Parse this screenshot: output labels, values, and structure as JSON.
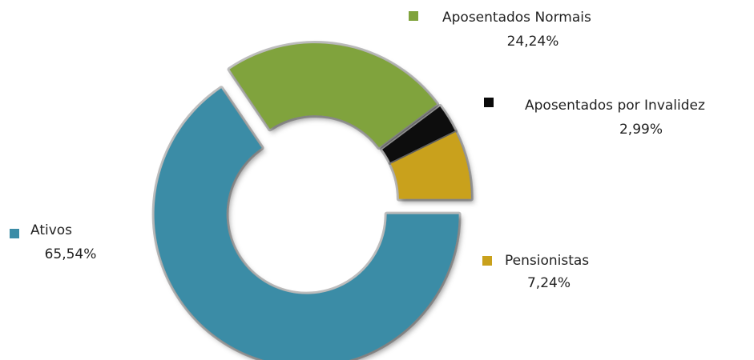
{
  "chart_data": {
    "type": "donut",
    "categories": [
      "Ativos",
      "Aposentados Normais",
      "Aposentados por Invalidez",
      "Pensionistas"
    ],
    "values": [
      65.54,
      24.24,
      2.99,
      7.24
    ],
    "value_labels": [
      "65,54%",
      "24,24%",
      "2,99%",
      "7,24%"
    ],
    "colors": [
      "#3b8ca6",
      "#80a33c",
      "#0a0a0a",
      "#c9a11c"
    ]
  }
}
